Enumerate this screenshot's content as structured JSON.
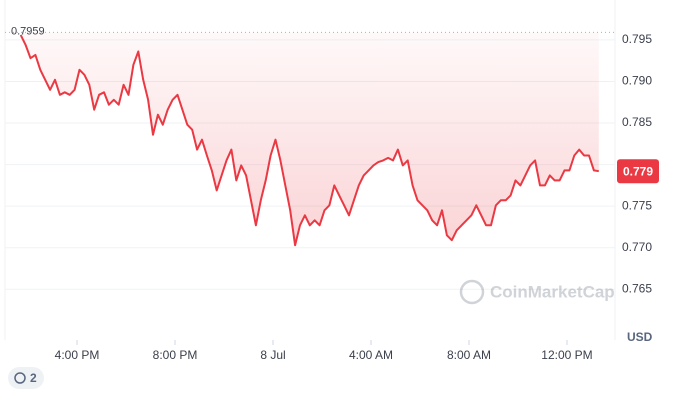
{
  "chart_data": {
    "type": "line",
    "start_price": "0.7959",
    "current_price": "0.779",
    "currency": "USD",
    "watermark": "CoinMarketCap",
    "history_badge": "2",
    "color": "#ea3943",
    "grid": true,
    "xlim": [
      13.06,
      37.96
    ],
    "ylim": [
      0.7589,
      0.7998
    ],
    "xticks": [
      {
        "value": 16,
        "label": "4:00 PM"
      },
      {
        "value": 20,
        "label": "8:00 PM"
      },
      {
        "value": 24,
        "label": "8 Jul"
      },
      {
        "value": 28,
        "label": "4:00 AM"
      },
      {
        "value": 32,
        "label": "8:00 AM"
      },
      {
        "value": 36,
        "label": "12:00 PM"
      }
    ],
    "yticks": [
      0.795,
      {
        "value": 0.79,
        "label": "0.790"
      },
      0.785,
      {
        "value": 0.78,
        "label": "0.780"
      },
      0.775,
      {
        "value": 0.77,
        "label": "0.770"
      },
      0.765
    ],
    "x": [
      13.7,
      13.9,
      14.1,
      14.3,
      14.5,
      14.7,
      14.9,
      15.1,
      15.3,
      15.5,
      15.7,
      15.9,
      16.1,
      16.3,
      16.5,
      16.7,
      16.9,
      17.1,
      17.3,
      17.5,
      17.7,
      17.9,
      18.1,
      18.3,
      18.5,
      18.7,
      18.9,
      19.1,
      19.3,
      19.5,
      19.7,
      19.9,
      20.1,
      20.3,
      20.5,
      20.7,
      20.9,
      21.1,
      21.3,
      21.5,
      21.7,
      21.9,
      22.1,
      22.3,
      22.5,
      22.7,
      22.9,
      23.1,
      23.3,
      23.5,
      23.7,
      23.9,
      24.1,
      24.3,
      24.5,
      24.7,
      24.9,
      25.1,
      25.3,
      25.5,
      25.7,
      25.9,
      26.1,
      26.3,
      26.5,
      26.7,
      26.9,
      27.1,
      27.3,
      27.5,
      27.7,
      27.9,
      28.1,
      28.3,
      28.5,
      28.7,
      28.9,
      29.1,
      29.3,
      29.5,
      29.7,
      29.9,
      30.1,
      30.3,
      30.5,
      30.7,
      30.9,
      31.1,
      31.3,
      31.5,
      31.7,
      31.9,
      32.1,
      32.3,
      32.5,
      32.7,
      32.9,
      33.1,
      33.3,
      33.5,
      33.7,
      33.9,
      34.1,
      34.3,
      34.5,
      34.7,
      34.9,
      35.1,
      35.3,
      35.5,
      35.7,
      35.9,
      36.1,
      36.3,
      36.5,
      36.7,
      36.9,
      37.1,
      37.3
    ],
    "series": [
      {
        "values": [
          0.7956,
          0.7944,
          0.7928,
          0.7932,
          0.7914,
          0.7902,
          0.789,
          0.7902,
          0.7884,
          0.7887,
          0.7884,
          0.789,
          0.7914,
          0.7908,
          0.7896,
          0.7866,
          0.7884,
          0.7887,
          0.7872,
          0.7878,
          0.7872,
          0.7896,
          0.7884,
          0.792,
          0.7936,
          0.7902,
          0.7878,
          0.7836,
          0.786,
          0.7848,
          0.7866,
          0.7878,
          0.7884,
          0.7866,
          0.7848,
          0.7842,
          0.7818,
          0.783,
          0.7811,
          0.7793,
          0.7769,
          0.7787,
          0.7805,
          0.7818,
          0.7781,
          0.7799,
          0.7787,
          0.7757,
          0.7727,
          0.7757,
          0.7781,
          0.7811,
          0.783,
          0.7805,
          0.7775,
          0.7745,
          0.7703,
          0.7727,
          0.7739,
          0.7727,
          0.7733,
          0.7727,
          0.7745,
          0.7751,
          0.7775,
          0.7763,
          0.7751,
          0.7739,
          0.7757,
          0.7775,
          0.7787,
          0.7793,
          0.7799,
          0.7803,
          0.7805,
          0.7808,
          0.7805,
          0.7818,
          0.7799,
          0.7805,
          0.7775,
          0.7757,
          0.7751,
          0.7745,
          0.7733,
          0.7727,
          0.7745,
          0.7715,
          0.7709,
          0.7721,
          0.7727,
          0.7733,
          0.7739,
          0.7751,
          0.7739,
          0.7727,
          0.7727,
          0.7751,
          0.7757,
          0.7757,
          0.7763,
          0.7781,
          0.7775,
          0.7787,
          0.7799,
          0.7805,
          0.7775,
          0.7775,
          0.7787,
          0.7781,
          0.7781,
          0.7793,
          0.7793,
          0.7811,
          0.7818,
          0.7811,
          0.7811,
          0.7793,
          0.7792
        ]
      }
    ]
  }
}
